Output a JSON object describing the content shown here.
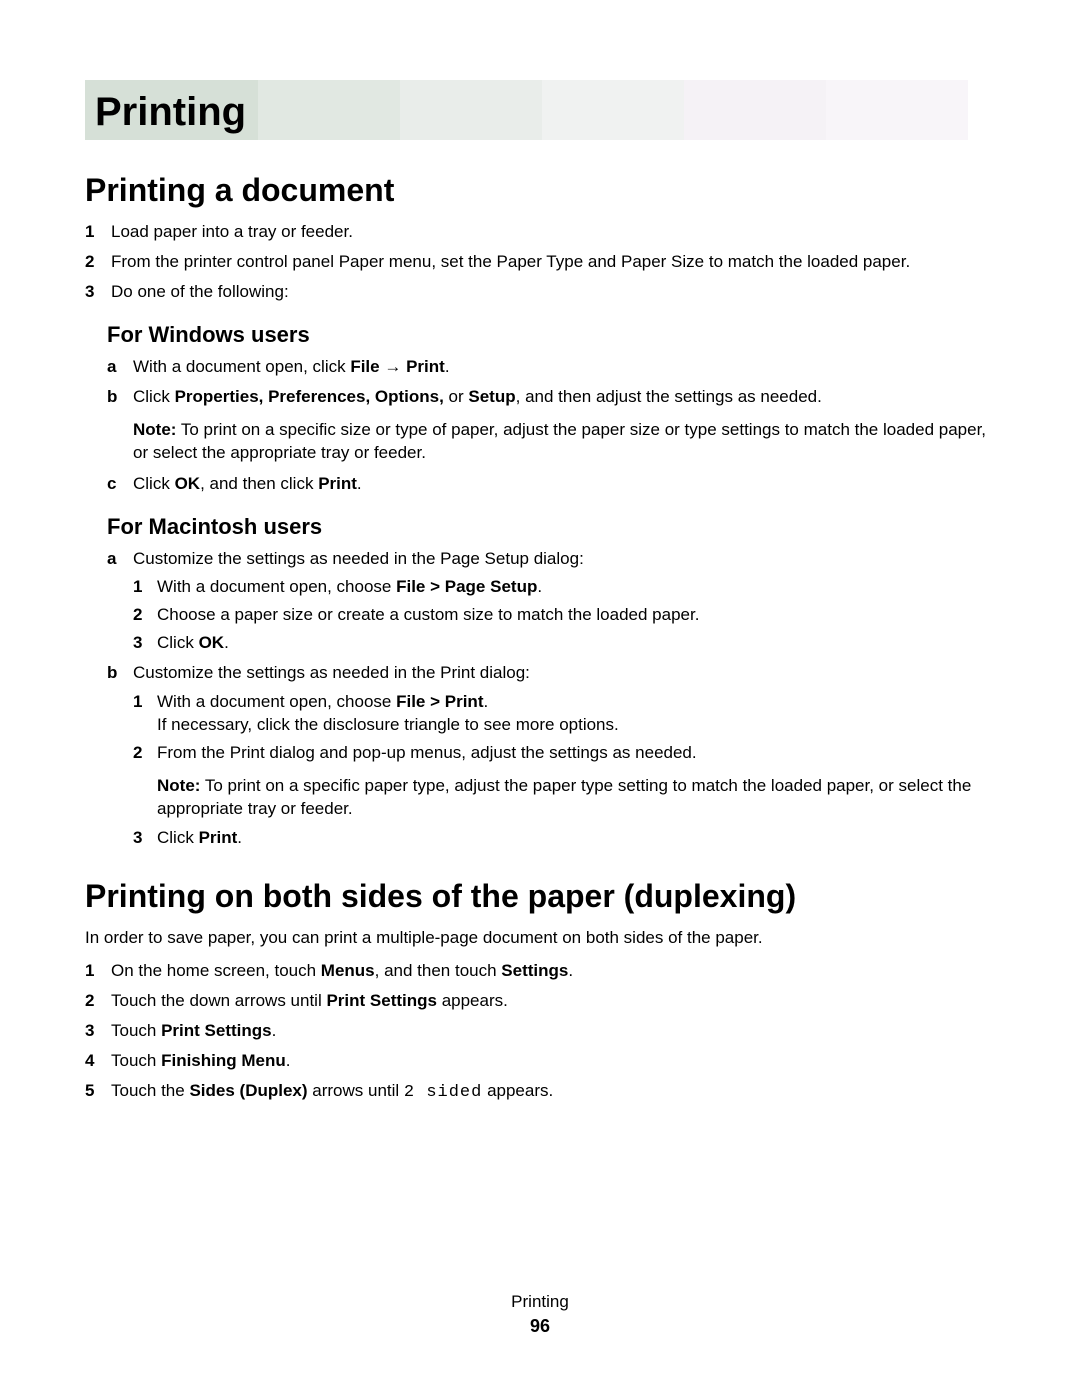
{
  "chapter": {
    "title": "Printing",
    "banner_colors": [
      "#d6e0d7",
      "#e1e8e2",
      "#e9edea",
      "#f0f2f1",
      "#f5f2f6",
      "#f8f5f9"
    ],
    "banner_widths": [
      200,
      142,
      142,
      142,
      142,
      142
    ]
  },
  "sections": {
    "printing_doc": {
      "heading": "Printing a document",
      "steps": {
        "s1": "Load paper into a tray or feeder.",
        "s2": "From the printer control panel Paper menu, set the Paper Type and Paper Size to match the loaded paper.",
        "s3": "Do one of the following:"
      },
      "windows": {
        "heading": "For Windows users",
        "a_pre": "With a document open, click ",
        "a_file": "File",
        "a_arrow": " → ",
        "a_print": "Print",
        "a_end": ".",
        "b_pre": "Click ",
        "b_bold": "Properties, Preferences, Options,",
        "b_mid": " or ",
        "b_setup": "Setup",
        "b_post": ", and then adjust the settings as needed.",
        "note_label": "Note:",
        "note_text": " To print on a specific size or type of paper, adjust the paper size or type settings to match the loaded paper, or select the appropriate tray or feeder.",
        "c_pre": "Click ",
        "c_ok": "OK",
        "c_mid": ", and then click ",
        "c_print": "Print",
        "c_end": "."
      },
      "mac": {
        "heading": "For Macintosh users",
        "a_text": "Customize the settings as needed in the Page Setup dialog:",
        "a1_pre": "With a document open, choose ",
        "a1_bold": "File > Page Setup",
        "a1_end": ".",
        "a2": "Choose a paper size or create a custom size to match the loaded paper.",
        "a3_pre": "Click ",
        "a3_ok": "OK",
        "a3_end": ".",
        "b_text": "Customize the settings as needed in the Print dialog:",
        "b1_pre": "With a document open, choose ",
        "b1_bold": "File > Print",
        "b1_end": ".",
        "b1_line2": "If necessary, click the disclosure triangle to see more options.",
        "b2": "From the Print dialog and pop-up menus, adjust the settings as needed.",
        "note_label": "Note:",
        "note_text": " To print on a specific paper type, adjust the paper type setting to match the loaded paper, or select the appropriate tray or feeder.",
        "b3_pre": "Click ",
        "b3_print": "Print",
        "b3_end": "."
      }
    },
    "duplex": {
      "heading": "Printing on both sides of the paper (duplexing)",
      "intro": "In order to save paper, you can print a multiple-page document on both sides of the paper.",
      "s1_pre": "On the home screen, touch ",
      "s1_menus": "Menus",
      "s1_mid": ", and then touch ",
      "s1_settings": "Settings",
      "s1_end": ".",
      "s2_pre": "Touch the down arrows until ",
      "s2_bold": "Print Settings",
      "s2_end": " appears.",
      "s3_pre": "Touch ",
      "s3_bold": "Print Settings",
      "s3_end": ".",
      "s4_pre": "Touch ",
      "s4_bold": "Finishing Menu",
      "s4_end": ".",
      "s5_pre": "Touch the ",
      "s5_bold": "Sides (Duplex)",
      "s5_mid": " arrows until ",
      "s5_mono": "2 sided",
      "s5_end": " appears."
    }
  },
  "footer": {
    "title": "Printing",
    "page": "96"
  }
}
